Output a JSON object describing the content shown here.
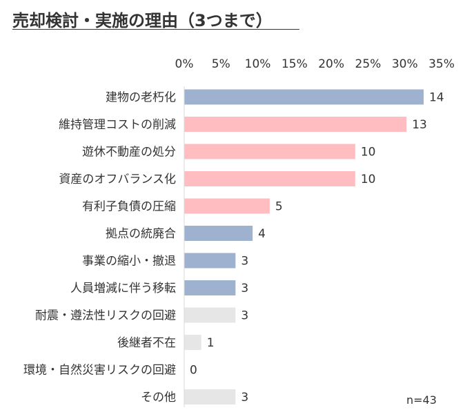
{
  "chart_data": {
    "type": "bar",
    "orientation": "horizontal",
    "title": "売却検討・実施の理由（3つまで）",
    "xlabel": "",
    "ylabel": "",
    "xlim": [
      0,
      35
    ],
    "x_ticks": [
      "0%",
      "5%",
      "10%",
      "15%",
      "20%",
      "25%",
      "30%",
      "35%"
    ],
    "x_axis_position": "top",
    "grid": false,
    "legend": "none",
    "total": 43,
    "note": "n=43",
    "categories": [
      "建物の老朽化",
      "維持管理コストの削減",
      "遊休不動産の処分",
      "資産のオフバランス化",
      "有利子負債の圧縮",
      "拠点の統廃合",
      "事業の縮小・撤退",
      "人員増減に伴う移転",
      "耐震・遵法性リスクの回避",
      "後継者不在",
      "環境・自然災害リスクの回避",
      "その他"
    ],
    "values": [
      14,
      13,
      10,
      10,
      5,
      4,
      3,
      3,
      3,
      1,
      0,
      3
    ],
    "bar_colors": [
      "#9eb1cf",
      "#ffbdc1",
      "#ffbdc1",
      "#ffbdc1",
      "#ffbdc1",
      "#9eb1cf",
      "#9eb1cf",
      "#9eb1cf",
      "#e6e6e6",
      "#e6e6e6",
      "#e6e6e6",
      "#e6e6e6"
    ]
  }
}
